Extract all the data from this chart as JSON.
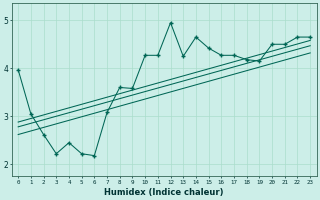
{
  "xlabel": "Humidex (Indice chaleur)",
  "bg_color": "#cceee8",
  "grid_color": "#aaddcc",
  "line_color": "#006655",
  "xlim": [
    -0.5,
    23.5
  ],
  "ylim": [
    1.75,
    5.35
  ],
  "yticks": [
    2,
    3,
    4,
    5
  ],
  "xticks": [
    0,
    1,
    2,
    3,
    4,
    5,
    6,
    7,
    8,
    9,
    10,
    11,
    12,
    13,
    14,
    15,
    16,
    17,
    18,
    19,
    20,
    21,
    22,
    23
  ],
  "series_main_x": [
    0,
    1,
    2,
    3,
    4,
    5,
    6,
    7,
    8,
    9,
    10,
    11,
    12,
    13,
    14,
    15,
    16,
    17,
    18,
    19,
    20,
    21,
    22,
    23
  ],
  "series_main_y": [
    3.97,
    3.05,
    2.62,
    2.22,
    2.45,
    2.22,
    2.18,
    3.08,
    3.6,
    3.58,
    4.27,
    4.27,
    4.95,
    4.25,
    4.65,
    4.42,
    4.27,
    4.27,
    4.18,
    4.15,
    4.5,
    4.5,
    4.65,
    4.65
  ],
  "trend_lines": [
    {
      "x": [
        0,
        23
      ],
      "y": [
        2.88,
        4.58
      ]
    },
    {
      "x": [
        0,
        23
      ],
      "y": [
        2.78,
        4.47
      ]
    },
    {
      "x": [
        0,
        23
      ],
      "y": [
        2.62,
        4.32
      ]
    }
  ]
}
